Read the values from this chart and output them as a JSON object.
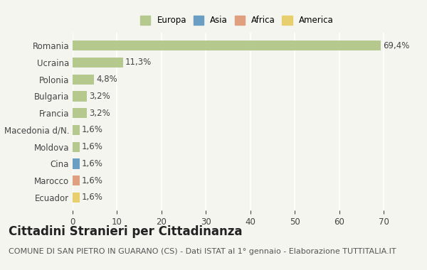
{
  "countries": [
    "Romania",
    "Ucraina",
    "Polonia",
    "Bulgaria",
    "Francia",
    "Macedonia d/N.",
    "Moldova",
    "Cina",
    "Marocco",
    "Ecuador"
  ],
  "values": [
    69.4,
    11.3,
    4.8,
    3.2,
    3.2,
    1.6,
    1.6,
    1.6,
    1.6,
    1.6
  ],
  "labels": [
    "69,4%",
    "11,3%",
    "4,8%",
    "3,2%",
    "3,2%",
    "1,6%",
    "1,6%",
    "1,6%",
    "1,6%",
    "1,6%"
  ],
  "continents": [
    "Europa",
    "Europa",
    "Europa",
    "Europa",
    "Europa",
    "Europa",
    "Europa",
    "Asia",
    "Africa",
    "America"
  ],
  "colors": {
    "Europa": "#b5c98e",
    "Asia": "#6a9ec2",
    "Africa": "#e0a080",
    "America": "#e8cf6e"
  },
  "legend_order": [
    "Europa",
    "Asia",
    "Africa",
    "America"
  ],
  "xlim": [
    0,
    74
  ],
  "xticks": [
    0,
    10,
    20,
    30,
    40,
    50,
    60,
    70
  ],
  "title": "Cittadini Stranieri per Cittadinanza",
  "subtitle": "COMUNE DI SAN PIETRO IN GUARANO (CS) - Dati ISTAT al 1° gennaio - Elaborazione TUTTITALIA.IT",
  "background_color": "#f5f5f0",
  "bar_height": 0.6,
  "grid_color": "#ffffff",
  "label_fontsize": 8.5,
  "title_fontsize": 12,
  "subtitle_fontsize": 8
}
